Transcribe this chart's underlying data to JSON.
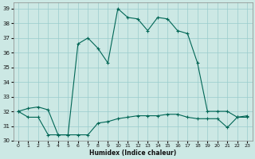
{
  "xlabel": "Humidex (Indice chaleur)",
  "bg_color": "#cce8e4",
  "grid_color": "#99cccc",
  "line_color": "#006655",
  "xlim": [
    -0.5,
    23.5
  ],
  "ylim": [
    30,
    39.4
  ],
  "xticks": [
    0,
    1,
    2,
    3,
    4,
    5,
    6,
    7,
    8,
    9,
    10,
    11,
    12,
    13,
    14,
    15,
    16,
    17,
    18,
    19,
    20,
    21,
    22,
    23
  ],
  "yticks": [
    30,
    31,
    32,
    33,
    34,
    35,
    36,
    37,
    38,
    39
  ],
  "series1_x": [
    0,
    1,
    2,
    3,
    4,
    5,
    6,
    7,
    8,
    9,
    10,
    11,
    12,
    13,
    14,
    15,
    16,
    17,
    18,
    19,
    20,
    21,
    22,
    23
  ],
  "series1_y": [
    32.0,
    32.2,
    32.3,
    32.1,
    30.4,
    30.4,
    36.6,
    37.0,
    36.3,
    35.3,
    39.0,
    38.4,
    38.3,
    37.5,
    38.4,
    38.3,
    37.5,
    37.3,
    35.3,
    32.0,
    32.0,
    32.0,
    31.6,
    31.7
  ],
  "series2_x": [
    0,
    1,
    2,
    3,
    4,
    5,
    6,
    7,
    8,
    9,
    10,
    11,
    12,
    13,
    14,
    15,
    16,
    17,
    18,
    19,
    20,
    21,
    22,
    23
  ],
  "series2_y": [
    32.0,
    31.6,
    31.6,
    30.4,
    30.4,
    30.4,
    30.4,
    30.4,
    31.2,
    31.3,
    31.5,
    31.6,
    31.7,
    31.7,
    31.7,
    31.8,
    31.8,
    31.6,
    31.5,
    31.5,
    31.5,
    30.9,
    31.6,
    31.6
  ]
}
